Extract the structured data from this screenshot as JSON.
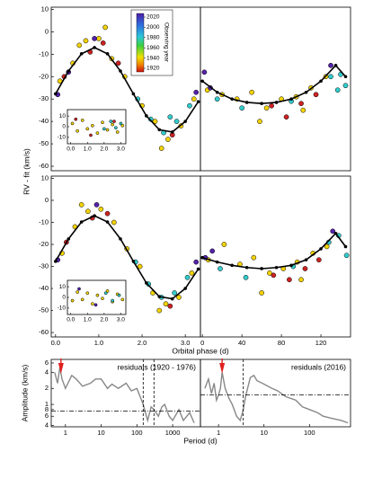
{
  "chart_data": [
    {
      "type": "scatter",
      "ylabel": "RV - fit (km/s)",
      "xlim": [
        -0.1,
        3.35
      ],
      "ylim": [
        -62,
        11
      ],
      "yticks": [
        10,
        0,
        -10,
        -20,
        -30,
        -40,
        -50,
        -60
      ],
      "series": [
        {
          "color": "#f2d200",
          "x": [
            0.1,
            0.4,
            0.7,
            1.0,
            1.3,
            1.6,
            2.0,
            2.3,
            2.6,
            2.9,
            3.2,
            0.55,
            1.15,
            2.45
          ],
          "values": [
            -22,
            -14,
            -4,
            -3,
            -12,
            -20,
            -33,
            -40,
            -48,
            -42,
            -30,
            -6,
            2,
            -52
          ]
        },
        {
          "color": "#33cccc",
          "x": [
            1.9,
            2.2,
            2.5,
            2.8,
            3.1,
            2.65
          ],
          "values": [
            -30,
            -39,
            -45,
            -40,
            -33,
            -38
          ]
        },
        {
          "color": "#cc2222",
          "x": [
            0.2,
            0.8,
            1.1,
            2.7,
            1.45
          ],
          "values": [
            -20,
            -9,
            -5,
            -46,
            -14
          ]
        },
        {
          "color": "#5522aa",
          "x": [
            0.05,
            0.9,
            3.25,
            0.3
          ],
          "values": [
            -28,
            -3,
            -27,
            -18
          ]
        }
      ],
      "fit": {
        "x": [
          0,
          0.3,
          0.6,
          0.9,
          1.2,
          1.5,
          1.8,
          2.1,
          2.4,
          2.7,
          3.0,
          3.3
        ],
        "values": [
          -27.7,
          -17.5,
          -9.8,
          -7,
          -9.8,
          -17.5,
          -27.7,
          -37.5,
          -43.7,
          -44.7,
          -40,
          -31.2
        ]
      },
      "inset": {
        "xlim": [
          -0.2,
          3.3
        ],
        "ylim": [
          -16,
          16
        ],
        "xticks": [
          {
            "value": 0,
            "label": "0.0"
          },
          {
            "value": 1,
            "label": "1.0"
          },
          {
            "value": 2,
            "label": "2.0"
          },
          {
            "value": 3,
            "label": "3.0"
          }
        ],
        "yticks": [
          10,
          0,
          -10
        ],
        "series": [
          {
            "color": "#f2d200",
            "x": [
              0.1,
              0.4,
              0.7,
              1.0,
              1.3,
              1.6,
              1.9,
              2.2,
              2.5,
              2.8,
              3.1
            ],
            "values": [
              3,
              -4,
              6,
              -2,
              1,
              -6,
              4,
              -3,
              2,
              -5,
              1
            ]
          },
          {
            "color": "#33cccc",
            "x": [
              2.0,
              2.4,
              2.7,
              3.0
            ],
            "values": [
              -2,
              5,
              -1,
              3
            ]
          },
          {
            "color": "#cc2222",
            "x": [
              0.3,
              1.2,
              2.6
            ],
            "values": [
              7,
              -8,
              5
            ]
          }
        ]
      },
      "colorbar": {
        "label": "Observing year",
        "ticks": [
          2020,
          2000,
          1980,
          1960,
          1940,
          1920
        ]
      }
    },
    {
      "type": "scatter",
      "xlim": [
        -2,
        150
      ],
      "ylim": [
        -62,
        11
      ],
      "series": [
        {
          "color": "#f2d200",
          "x": [
            5,
            20,
            35,
            50,
            65,
            80,
            95,
            110,
            125,
            58,
            102
          ],
          "values": [
            -26,
            -28,
            -30,
            -27,
            -34,
            -30,
            -29,
            -25,
            -20,
            -40,
            -35
          ]
        },
        {
          "color": "#33cccc",
          "x": [
            15,
            40,
            90,
            130,
            140,
            145,
            137
          ],
          "values": [
            -30,
            -34,
            -31,
            -20,
            -19,
            -24,
            -26
          ]
        },
        {
          "color": "#cc2222",
          "x": [
            70,
            85,
            100,
            115
          ],
          "values": [
            -33,
            -38,
            -32,
            -28
          ]
        },
        {
          "color": "#5522aa",
          "x": [
            2,
            8,
            130
          ],
          "values": [
            -18,
            -25,
            -15
          ]
        }
      ],
      "fit": {
        "x": [
          0,
          15,
          30,
          45,
          60,
          75,
          90,
          105,
          120,
          135,
          145
        ],
        "values": [
          -22,
          -27,
          -30,
          -31.5,
          -32,
          -31.5,
          -30,
          -27,
          -22,
          -15,
          -20
        ]
      }
    },
    {
      "type": "scatter",
      "xlim": [
        -0.1,
        3.35
      ],
      "ylim": [
        -62,
        11
      ],
      "yticks": [
        10,
        0,
        -10,
        -20,
        -30,
        -40,
        -50,
        -60
      ],
      "xticks": [
        {
          "value": 0,
          "label": "0.0"
        },
        {
          "value": 1,
          "label": "1.0"
        },
        {
          "value": 2,
          "label": "2.0"
        },
        {
          "value": 3,
          "label": "3.0"
        }
      ],
      "series": [
        {
          "color": "#f2d200",
          "x": [
            0.15,
            0.45,
            0.75,
            1.05,
            1.35,
            1.65,
            1.95,
            2.25,
            2.55,
            2.85,
            3.15,
            0.6,
            2.4
          ],
          "values": [
            -24,
            -12,
            -5,
            -4,
            -10,
            -22,
            -30,
            -42,
            -47,
            -44,
            -33,
            -2,
            -50
          ]
        },
        {
          "color": "#33cccc",
          "x": [
            1.85,
            2.15,
            2.45,
            2.75,
            3.05
          ],
          "values": [
            -28,
            -38,
            -44,
            -42,
            -35
          ]
        },
        {
          "color": "#cc2222",
          "x": [
            0.25,
            0.85,
            1.2,
            2.65
          ],
          "values": [
            -19,
            -8,
            -6,
            -48
          ]
        },
        {
          "color": "#5522aa",
          "x": [
            0.05,
            0.95,
            3.25
          ],
          "values": [
            -27,
            -2,
            -28
          ]
        }
      ],
      "fit": {
        "x": [
          0,
          0.3,
          0.6,
          0.9,
          1.2,
          1.5,
          1.8,
          2.1,
          2.4,
          2.7,
          3.0,
          3.3
        ],
        "values": [
          -27.7,
          -17.5,
          -9.8,
          -7,
          -9.8,
          -17.5,
          -27.7,
          -37.5,
          -43.7,
          -44.7,
          -40,
          -31.2
        ]
      },
      "inset": {
        "xlim": [
          -0.2,
          3.3
        ],
        "ylim": [
          -16,
          16
        ],
        "xticks": [
          {
            "value": 0,
            "label": "0.0"
          },
          {
            "value": 1,
            "label": "1.0"
          },
          {
            "value": 2,
            "label": "2.0"
          },
          {
            "value": 3,
            "label": "3.0"
          }
        ],
        "yticks": [
          10,
          0,
          -10
        ],
        "series": [
          {
            "color": "#f2d200",
            "x": [
              0.1,
              0.4,
              0.7,
              1.0,
              1.3,
              1.6,
              1.9,
              2.2,
              2.5,
              2.8,
              3.1
            ],
            "values": [
              -3,
              5,
              -2,
              4,
              -6,
              2,
              -1,
              6,
              -4,
              3,
              -2
            ]
          },
          {
            "color": "#33cccc",
            "x": [
              2.1,
              2.5,
              2.9
            ],
            "values": [
              4,
              -3,
              2
            ]
          },
          {
            "color": "#5522aa",
            "x": [
              0.5,
              1.5
            ],
            "values": [
              8,
              -7
            ]
          }
        ]
      }
    },
    {
      "type": "scatter",
      "xlabel": "Orbital phase (d)",
      "xlim": [
        -2,
        150
      ],
      "ylim": [
        -62,
        11
      ],
      "xticks": [
        0,
        40,
        80,
        120
      ],
      "series": [
        {
          "color": "#f2d200",
          "x": [
            6,
            22,
            38,
            52,
            68,
            82,
            96,
            112,
            126,
            60,
            100
          ],
          "values": [
            -27,
            -20,
            -29,
            -26,
            -33,
            -31,
            -28,
            -24,
            -21,
            -42,
            -36
          ]
        },
        {
          "color": "#33cccc",
          "x": [
            18,
            44,
            92,
            128,
            138,
            146
          ],
          "values": [
            -31,
            -35,
            -30,
            -19,
            -16,
            -25
          ]
        },
        {
          "color": "#cc2222",
          "x": [
            72,
            88,
            104,
            118
          ],
          "values": [
            -34,
            -36,
            -31,
            -27
          ]
        },
        {
          "color": "#5522aa",
          "x": [
            3,
            10,
            132
          ],
          "values": [
            -26,
            -23,
            -14
          ]
        }
      ],
      "fit": {
        "x": [
          0,
          15,
          30,
          45,
          60,
          75,
          90,
          105,
          120,
          135,
          145
        ],
        "values": [
          -26,
          -28,
          -29.5,
          -30.5,
          -31,
          -30.5,
          -29.5,
          -27,
          -22,
          -15,
          -21
        ]
      }
    },
    {
      "type": "line",
      "xlabel": "Period (d)",
      "ylabel": "Amplitude (km/s)",
      "annotation": "residuals (1920 - 1976)",
      "xlog": true,
      "ylog": true,
      "xlim": [
        0.4,
        6000
      ],
      "ylim": [
        0.38,
        7
      ],
      "xticks": [
        1,
        10,
        100,
        1000
      ],
      "yticks": [
        6,
        4,
        2,
        1,
        {
          "value": 0.8,
          "label": "8"
        },
        {
          "value": 0.6,
          "label": "6"
        },
        {
          "value": 0.4,
          "label": "4"
        }
      ],
      "color": "#888888",
      "x": [
        0.5,
        0.6,
        0.7,
        0.8,
        1,
        1.5,
        2,
        3,
        5,
        7,
        10,
        15,
        20,
        30,
        50,
        70,
        100,
        150,
        200,
        250,
        300,
        400,
        500,
        600,
        800,
        1000,
        1500,
        2000,
        3000,
        4000
      ],
      "values": [
        4,
        2.5,
        5,
        3,
        2,
        3.5,
        3,
        2.2,
        2.5,
        3,
        3,
        2,
        2.4,
        2,
        2.5,
        1.8,
        2,
        1,
        0.5,
        0.9,
        0.8,
        0.6,
        0.9,
        1,
        0.6,
        0.5,
        0.8,
        0.5,
        0.7,
        0.45
      ],
      "vlines": [
        150,
        300
      ],
      "hline": 0.75,
      "arrow": 0.75
    },
    {
      "type": "line",
      "annotation": "residuals (2016)",
      "xlog": true,
      "ylog": true,
      "xlim": [
        0.4,
        800
      ],
      "ylim": [
        0.38,
        7
      ],
      "xticks": [
        1,
        10,
        100
      ],
      "color": "#888888",
      "x": [
        0.5,
        0.6,
        0.7,
        0.8,
        0.9,
        1,
        1.1,
        1.2,
        1.4,
        1.7,
        2,
        2.5,
        3,
        3.5,
        4,
        5,
        6,
        7,
        10,
        15,
        20,
        30,
        50,
        70,
        100,
        150,
        200,
        300,
        500,
        700
      ],
      "values": [
        2,
        3,
        1.6,
        2.5,
        1.2,
        1.5,
        2,
        4,
        2,
        1.3,
        1,
        0.6,
        0.5,
        0.8,
        1.5,
        3.2,
        3.5,
        2.8,
        2.4,
        2,
        1.8,
        1.4,
        1.2,
        0.9,
        0.8,
        0.7,
        0.6,
        0.55,
        0.5,
        0.45
      ],
      "vlines": [
        3.5
      ],
      "hline": 1.5,
      "arrow": 1.2
    }
  ]
}
